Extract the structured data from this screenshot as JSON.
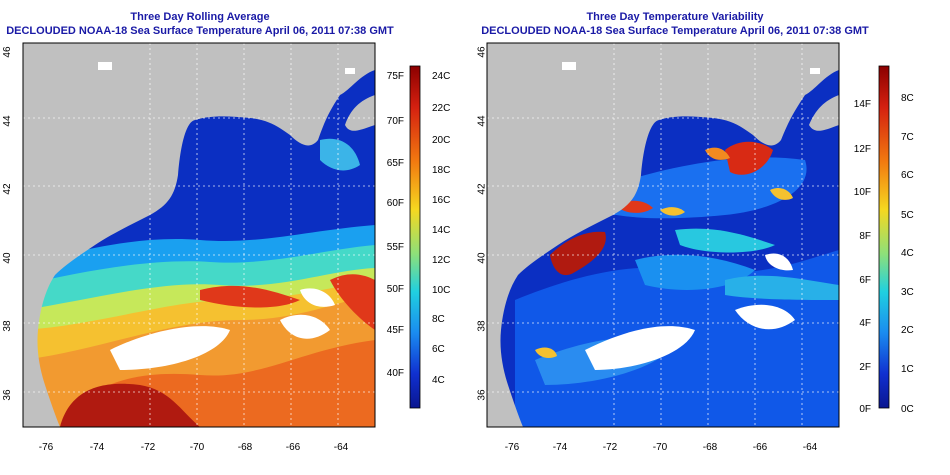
{
  "panels": [
    {
      "title": "Three Day Rolling Average",
      "subtitle": "DECLOUDED NOAA-18 Sea Surface Temperature April 06, 2011 07:38 GMT",
      "lon_ticks": [
        "-76",
        "-74",
        "-72",
        "-70",
        "-68",
        "-66",
        "-64"
      ],
      "lat_ticks": [
        "36",
        "38",
        "40",
        "42",
        "44",
        "46"
      ],
      "colorbar": {
        "celsius_ticks": [
          "24C",
          "22C",
          "20C",
          "18C",
          "16C",
          "14C",
          "12C",
          "10C",
          "8C",
          "6C",
          "4C"
        ],
        "fahrenheit_ticks": [
          "75F",
          "70F",
          "65F",
          "60F",
          "55F",
          "50F",
          "45F",
          "40F"
        ]
      }
    },
    {
      "title": "Three Day Temperature Variability",
      "subtitle": "DECLOUDED NOAA-18 Sea Surface Temperature April 06, 2011 07:38 GMT",
      "lon_ticks": [
        "-76",
        "-74",
        "-72",
        "-70",
        "-68",
        "-66",
        "-64"
      ],
      "lat_ticks": [
        "36",
        "38",
        "40",
        "42",
        "44",
        "46"
      ],
      "colorbar": {
        "celsius_ticks": [
          "8C",
          "7C",
          "6C",
          "5C",
          "4C",
          "3C",
          "2C",
          "1C",
          "0C"
        ],
        "fahrenheit_ticks": [
          "14F",
          "12F",
          "10F",
          "8F",
          "6F",
          "4F",
          "2F",
          "0F"
        ]
      }
    }
  ],
  "colors": {
    "land": "#c0c0c0",
    "cold": "#0a2bb8",
    "warm": "#e8381a",
    "title": "#1a1aa6"
  }
}
